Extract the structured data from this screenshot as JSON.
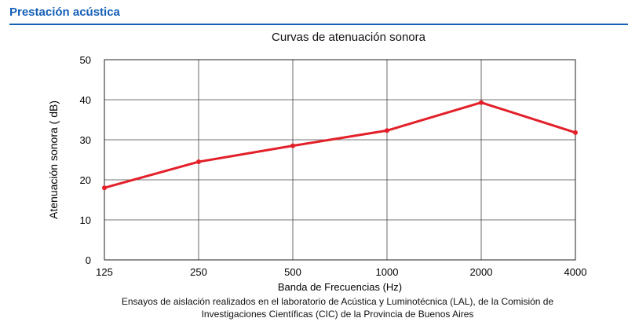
{
  "header": {
    "title": "Prestación acústica"
  },
  "chart_data": {
    "type": "line",
    "title": "Curvas de atenuación sonora",
    "xlabel": "Banda de Frecuencias (Hz)",
    "ylabel": "Atenuación sonora ( dB)",
    "categories": [
      "125",
      "250",
      "500",
      "1000",
      "2000",
      "4000"
    ],
    "series": [
      {
        "values": [
          18,
          24.5,
          28.5,
          32.3,
          39.3,
          31.8
        ],
        "color": "#e3202a"
      }
    ],
    "ylim": [
      0,
      50
    ],
    "yticks": [
      "0",
      "10",
      "20",
      "30",
      "40",
      "50"
    ],
    "grid": true
  },
  "caption": {
    "line1": "Ensayos de aislación realizados en el laboratorio de Acústica y Luminotécnica (LAL), de la Comisión de",
    "line2": "Investigaciones Científicas (CIC) de la Provincia de Buenos Aires"
  }
}
